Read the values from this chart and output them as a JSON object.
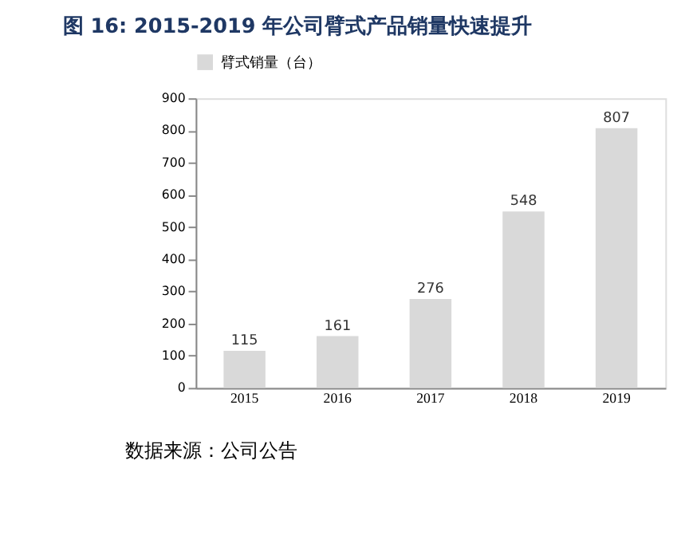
{
  "chart_data": {
    "type": "bar",
    "title": "图 16: 2015-2019 年公司臂式产品销量快速提升",
    "categories": [
      "2015",
      "2016",
      "2017",
      "2018",
      "2019"
    ],
    "series": [
      {
        "name": "臂式销量（台）",
        "color": "#d9d9d9",
        "values": [
          115,
          161,
          276,
          548,
          807
        ]
      }
    ],
    "ylim": [
      0,
      900
    ],
    "yticks": [
      0,
      100,
      200,
      300,
      400,
      500,
      600,
      700,
      800,
      900
    ],
    "grid": false,
    "legend": "top",
    "data_labels": true,
    "annotations": [
      "数据来源：公司公告"
    ]
  }
}
